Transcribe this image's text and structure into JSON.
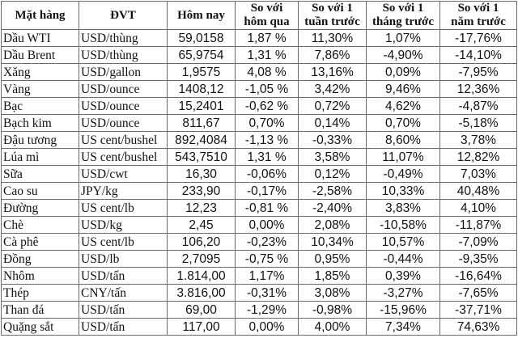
{
  "table": {
    "headers": [
      "Mặt hàng",
      "ĐVT",
      "Hôm nay",
      "So với\nhôm qua",
      "So với 1\ntuần trước",
      "So với 1\ntháng trước",
      "So với 1\nnăm trước"
    ],
    "header_lines": [
      [
        "Mặt hàng"
      ],
      [
        "ĐVT"
      ],
      [
        "Hôm nay"
      ],
      [
        "So với",
        "hôm qua"
      ],
      [
        "So với 1",
        "tuần trước"
      ],
      [
        "So với 1",
        "tháng trước"
      ],
      [
        "So với 1",
        "năm trước"
      ]
    ],
    "rows": [
      {
        "name": "Dầu WTI",
        "unit": "USD/thùng",
        "today": "59,0158",
        "vs_yesterday": "1,87 %",
        "vs_week": "11,30%",
        "vs_month": "1,07%",
        "vs_year": "-17,76%"
      },
      {
        "name": "Dầu Brent",
        "unit": "USD/thùng",
        "today": "65,9754",
        "vs_yesterday": "1,31 %",
        "vs_week": "7,86%",
        "vs_month": "-4,90%",
        "vs_year": "-14,10%"
      },
      {
        "name": "Xăng",
        "unit": "USD/gallon",
        "today": "1,9575",
        "vs_yesterday": "4,08 %",
        "vs_week": "13,16%",
        "vs_month": "0,09%",
        "vs_year": "-7,95%"
      },
      {
        "name": "Vàng",
        "unit": "USD/ounce",
        "today": "1408,12",
        "vs_yesterday": "-1,05 %",
        "vs_week": "3,42%",
        "vs_month": "9,46%",
        "vs_year": "12,36%"
      },
      {
        "name": "Bạc",
        "unit": "USD/ounce",
        "today": "15,2401",
        "vs_yesterday": "-0,62 %",
        "vs_week": "0,72%",
        "vs_month": "4,62%",
        "vs_year": "-4,87%"
      },
      {
        "name": "Bạch kim",
        "unit": "USD/ounce",
        "today": "811,67",
        "vs_yesterday": "0,70%",
        "vs_week": "0,14%",
        "vs_month": "0,70%",
        "vs_year": "-5,18%"
      },
      {
        "name": "Đậu tương",
        "unit": "US cent/bushel",
        "today": "892,4084",
        "vs_yesterday": "-1,13 %",
        "vs_week": "-0,33%",
        "vs_month": "8,60%",
        "vs_year": "3,78%"
      },
      {
        "name": "Lúa mì",
        "unit": "US cent/bushel",
        "today": "543,7510",
        "vs_yesterday": "1,31 %",
        "vs_week": "3,58%",
        "vs_month": "11,07%",
        "vs_year": "12,82%"
      },
      {
        "name": "Sữa",
        "unit": "USD/cwt",
        "today": "16,30",
        "vs_yesterday": "-0,06%",
        "vs_week": "0,12%",
        "vs_month": "-0,49%",
        "vs_year": "7,03%"
      },
      {
        "name": "Cao su",
        "unit": "JPY/kg",
        "today": "233,90",
        "vs_yesterday": "-0,17%",
        "vs_week": "-2,58%",
        "vs_month": "10,33%",
        "vs_year": "40,48%"
      },
      {
        "name": "Đường",
        "unit": "US cent/lb",
        "today": "12,23",
        "vs_yesterday": "-0,81 %",
        "vs_week": "-2,40%",
        "vs_month": "3,83%",
        "vs_year": "4,10%"
      },
      {
        "name": "Chè",
        "unit": "USD/kg",
        "today": "2,45",
        "vs_yesterday": "0,00%",
        "vs_week": "2,08%",
        "vs_month": "-10,58%",
        "vs_year": "-11,87%"
      },
      {
        "name": "Cà phê",
        "unit": "US cent/lb",
        "today": "106,20",
        "vs_yesterday": "-0,23%",
        "vs_week": "10,34%",
        "vs_month": "10,57%",
        "vs_year": "-7,09%"
      },
      {
        "name": "Đồng",
        "unit": "USD/lb",
        "today": "2,7095",
        "vs_yesterday": "-0,75 %",
        "vs_week": "0,95%",
        "vs_month": "-0,44%",
        "vs_year": "-9,35%"
      },
      {
        "name": "Nhôm",
        "unit": "USD/tấn",
        "today": "1.814,00",
        "vs_yesterday": "1,17%",
        "vs_week": "1,85%",
        "vs_month": "0,39%",
        "vs_year": "-16,64%"
      },
      {
        "name": "Thép",
        "unit": "CNY/tấn",
        "today": "3.816,00",
        "vs_yesterday": "-0,31%",
        "vs_week": "3,08%",
        "vs_month": "-3,27%",
        "vs_year": "-7,65%"
      },
      {
        "name": "Than đá",
        "unit": "USD/tấn",
        "today": "69,00",
        "vs_yesterday": "-1,29%",
        "vs_week": "-0,98%",
        "vs_month": "-15,96%",
        "vs_year": "-37,71%"
      },
      {
        "name": "Quặng sắt",
        "unit": "USD/tấn",
        "today": "117,00",
        "vs_yesterday": "0,00%",
        "vs_week": "4,00%",
        "vs_month": "7,34%",
        "vs_year": "74,63%"
      }
    ]
  },
  "colors": {
    "border": "#6a6a6a",
    "text": "#111111",
    "background": "#ffffff"
  }
}
